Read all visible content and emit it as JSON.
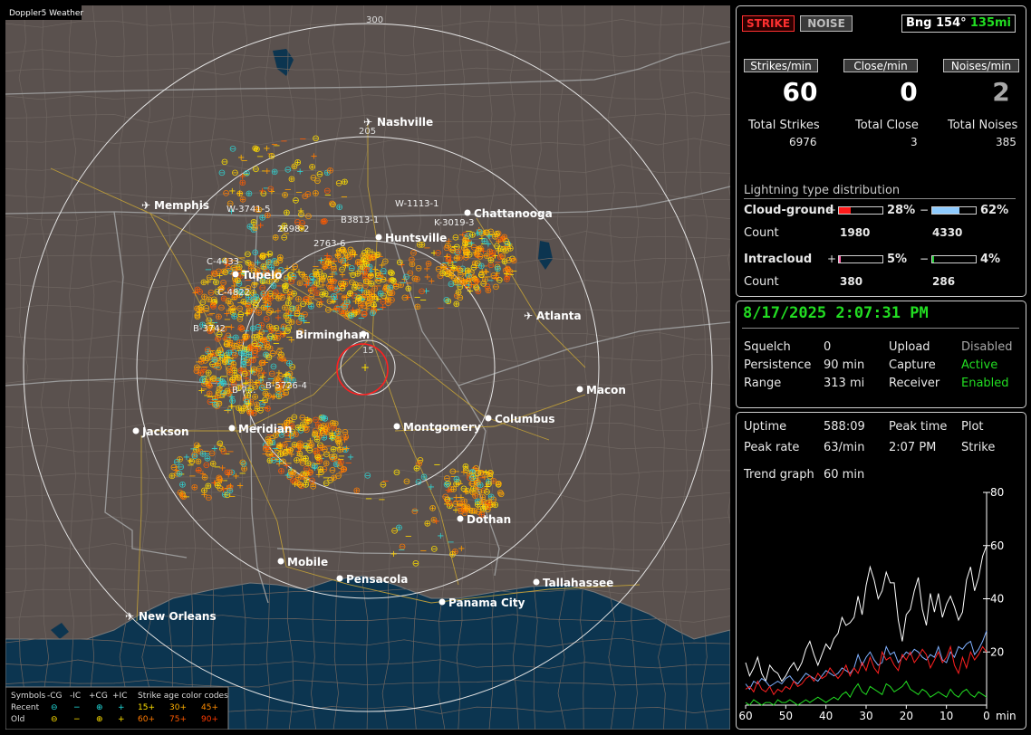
{
  "app": {
    "title": "Doppler5 Weather"
  },
  "map": {
    "range_labels": [
      "300",
      "205",
      "15"
    ],
    "cities": [
      {
        "name": "Nashville",
        "icon": "airport-icon"
      },
      {
        "name": "Memphis",
        "icon": "airport-icon"
      },
      {
        "name": "Chattanooga",
        "icon": "city-dot"
      },
      {
        "name": "Huntsville",
        "icon": "city-dot"
      },
      {
        "name": "Tupelo",
        "icon": "city-dot"
      },
      {
        "name": "Atlanta",
        "icon": "airport-icon"
      },
      {
        "name": "Birmingham",
        "icon": "city-dot"
      },
      {
        "name": "Macon",
        "icon": "city-dot"
      },
      {
        "name": "Jackson",
        "icon": "city-dot"
      },
      {
        "name": "Meridian",
        "icon": "city-dot"
      },
      {
        "name": "Montgomery",
        "icon": "city-dot"
      },
      {
        "name": "Columbus",
        "icon": "city-dot"
      },
      {
        "name": "Dothan",
        "icon": "city-dot"
      },
      {
        "name": "Mobile",
        "icon": "city-dot"
      },
      {
        "name": "Pensacola",
        "icon": "city-dot"
      },
      {
        "name": "Tallahassee",
        "icon": "city-dot"
      },
      {
        "name": "Panama City",
        "icon": "city-dot"
      },
      {
        "name": "New Orleans",
        "icon": "airport-icon"
      }
    ],
    "storm_labels": [
      "W-3741-5",
      "W-1113-1",
      "B3813-1",
      "K-3019-3",
      "2698-2",
      "2763-6",
      "C-4433",
      "C-4822",
      "B-3742",
      "B-5726-4",
      "B-7..."
    ],
    "legend": {
      "symbols_header": "Symbols",
      "types": [
        "-CG",
        "-IC",
        "+CG",
        "+IC"
      ],
      "age_header": "Strike age color codes",
      "rows": [
        {
          "label": "Recent",
          "glyphs": [
            "⊖",
            "−",
            "⊕",
            "+"
          ],
          "ages": [
            "15+",
            "30+",
            "45+"
          ],
          "age_colors": [
            "#ffe000",
            "#ffb000",
            "#ff8c00"
          ]
        },
        {
          "label": "Old",
          "glyphs": [
            "⊖",
            "−",
            "⊕",
            "+"
          ],
          "ages": [
            "60+",
            "75+",
            "90+"
          ],
          "age_colors": [
            "#ff7a00",
            "#ff5a00",
            "#ff3a00"
          ]
        }
      ]
    }
  },
  "top_panel": {
    "strike_btn": "STRIKE",
    "noise_btn": "NOISE",
    "bearing": "Bng 154°",
    "distance": "135mi",
    "rate_headers": [
      "Strikes/min",
      "Close/min",
      "Noises/min"
    ],
    "rates": [
      "60",
      "0",
      "2"
    ],
    "total_labels": [
      "Total Strikes",
      "Total Close",
      "Total Noises"
    ],
    "totals": [
      "6976",
      "3",
      "385"
    ],
    "dist_title": "Lightning type distribution",
    "cloud_ground": {
      "label": "Cloud-ground",
      "pos_sign": "+",
      "pos_pct": "28%",
      "pos_value": 28,
      "neg_sign": "−",
      "neg_pct": "62%",
      "neg_value": 62
    },
    "cg_count": {
      "label": "Count",
      "pos": "1980",
      "neg": "4330"
    },
    "intracloud": {
      "label": "Intracloud",
      "pos_sign": "+",
      "pos_pct": "5%",
      "pos_value": 5,
      "neg_sign": "−",
      "neg_pct": "4%",
      "neg_value": 4
    },
    "ic_count": {
      "label": "Count",
      "pos": "380",
      "neg": "286"
    }
  },
  "status_panel": {
    "datetime": "8/17/2025 2:07:31 PM",
    "rows": [
      [
        "Squelch",
        "0",
        "Upload",
        "Disabled"
      ],
      [
        "Persistence",
        "90 min",
        "Capture",
        "Active"
      ],
      [
        "Range",
        "313 mi",
        "Receiver",
        "Enabled"
      ]
    ]
  },
  "stats_panel": {
    "uptime_label": "Uptime",
    "uptime": "588:09",
    "peak_time_label": "Peak time",
    "plot_label": "Plot",
    "peak_rate_label": "Peak rate",
    "peak_rate": "63/min",
    "peak_time": "2:07 PM",
    "plot": "Strike",
    "trend_label": "Trend graph",
    "trend_window": "60 min"
  },
  "colors": {
    "accent_green": "#22dd22",
    "strike_red": "#ff2020",
    "bar_red": "#ff1a1a",
    "bar_blue": "#8ecbff",
    "bar_pink": "#ff66aa",
    "bar_green": "#22cc33"
  },
  "chart_data": {
    "type": "line",
    "x_ticks": [
      "60",
      "50",
      "40",
      "30",
      "20",
      "10",
      "0"
    ],
    "x_unit": "min",
    "y_ticks": [
      "80",
      "60",
      "40",
      "20"
    ],
    "ylim": [
      0,
      80
    ],
    "xlim": [
      60,
      0
    ],
    "series": [
      {
        "color": "#ffffff",
        "values": [
          16,
          11,
          14,
          18,
          12,
          9,
          15,
          13,
          12,
          9,
          11,
          14,
          16,
          13,
          16,
          21,
          24,
          19,
          15,
          19,
          23,
          21,
          25,
          27,
          33,
          30,
          31,
          33,
          41,
          34,
          45,
          52,
          47,
          40,
          43,
          50,
          46,
          46,
          32,
          24,
          34,
          36,
          43,
          48,
          36,
          30,
          42,
          35,
          42,
          33,
          38,
          41,
          37,
          32,
          35,
          47,
          52,
          43,
          48,
          56,
          60
        ]
      },
      {
        "color": "#7fb0ff",
        "values": [
          8,
          6,
          9,
          8,
          10,
          9,
          7,
          8,
          9,
          8,
          10,
          11,
          9,
          8,
          10,
          12,
          11,
          10,
          9,
          11,
          13,
          12,
          11,
          12,
          14,
          13,
          12,
          14,
          19,
          15,
          18,
          20,
          17,
          15,
          16,
          22,
          19,
          20,
          16,
          18,
          20,
          19,
          21,
          20,
          18,
          17,
          19,
          18,
          22,
          17,
          16,
          20,
          18,
          22,
          21,
          23,
          24,
          19,
          21,
          24,
          28
        ]
      },
      {
        "color": "#ff2020",
        "values": [
          6,
          7,
          5,
          9,
          6,
          5,
          7,
          4,
          6,
          5,
          7,
          6,
          9,
          7,
          8,
          10,
          11,
          9,
          12,
          10,
          11,
          14,
          12,
          10,
          12,
          15,
          11,
          14,
          12,
          16,
          13,
          18,
          14,
          12,
          20,
          17,
          18,
          15,
          13,
          19,
          17,
          20,
          16,
          18,
          21,
          19,
          14,
          17,
          20,
          16,
          18,
          22,
          15,
          12,
          18,
          14,
          20,
          17,
          19,
          22,
          20
        ]
      },
      {
        "color": "#22dd22",
        "values": [
          1,
          0,
          2,
          1,
          0,
          1,
          1,
          0,
          2,
          1,
          1,
          2,
          1,
          0,
          1,
          2,
          1,
          2,
          3,
          2,
          1,
          2,
          3,
          2,
          4,
          5,
          3,
          6,
          8,
          5,
          4,
          7,
          6,
          5,
          4,
          8,
          7,
          5,
          6,
          7,
          9,
          6,
          5,
          4,
          6,
          5,
          3,
          4,
          5,
          4,
          3,
          6,
          4,
          3,
          5,
          6,
          4,
          3,
          5,
          4,
          3
        ]
      }
    ]
  }
}
